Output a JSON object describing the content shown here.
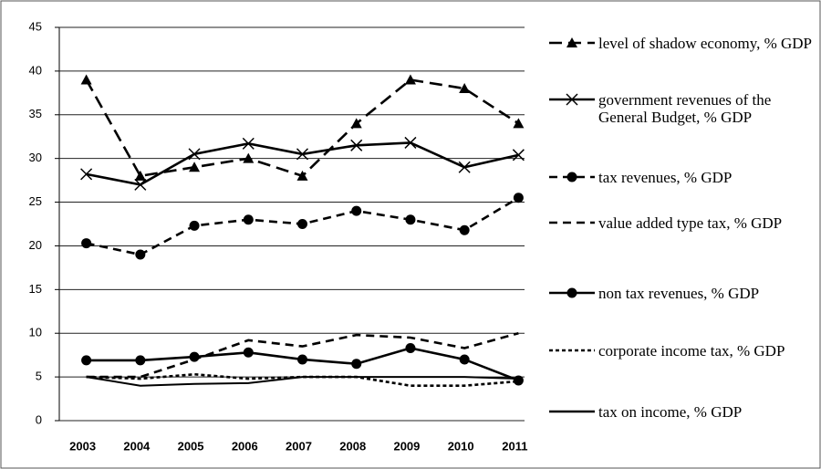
{
  "chart_data": {
    "type": "line",
    "categories": [
      "2003",
      "2004",
      "2005",
      "2006",
      "2007",
      "2008",
      "2009",
      "2010",
      "2011"
    ],
    "ylim": [
      0,
      45
    ],
    "yticks": [
      0,
      5,
      10,
      15,
      20,
      25,
      30,
      35,
      40,
      45
    ],
    "grid": true,
    "legend": "right",
    "series": [
      {
        "name": "level of shadow economy, % GDP",
        "color": "#000000",
        "marker": "triangle",
        "dash": "long",
        "values": [
          39,
          28,
          29,
          30,
          28,
          34,
          39,
          38,
          34
        ]
      },
      {
        "name": "government revenues of the General Budget, % GDP",
        "color": "#000000",
        "marker": "x",
        "dash": "solid",
        "values": [
          28.2,
          27,
          30.5,
          31.7,
          30.5,
          31.5,
          31.8,
          29,
          30.4
        ]
      },
      {
        "name": "tax revenues, % GDP",
        "color": "#000000",
        "marker": "circle",
        "dash": "medium",
        "values": [
          20.3,
          19,
          22.3,
          23,
          22.5,
          24,
          23,
          21.8,
          25.5
        ]
      },
      {
        "name": "value added type tax, % GDP",
        "color": "#000000",
        "marker": "none",
        "dash": "medium",
        "values": [
          5,
          5,
          7,
          9.2,
          8.5,
          9.8,
          9.5,
          8.3,
          10
        ]
      },
      {
        "name": "non tax revenues, % GDP",
        "color": "#000000",
        "marker": "circle",
        "dash": "solid",
        "values": [
          6.9,
          6.9,
          7.3,
          7.8,
          7,
          6.5,
          8.3,
          7,
          4.6
        ]
      },
      {
        "name": "corporate income tax, % GDP",
        "color": "#000000",
        "marker": "none",
        "dash": "short",
        "values": [
          5,
          4.8,
          5.3,
          4.8,
          5,
          5,
          4,
          4,
          4.5
        ]
      },
      {
        "name": "tax on income, % GDP",
        "color": "#000000",
        "marker": "none",
        "dash": "solid",
        "values": [
          5,
          4,
          4.2,
          4.3,
          5,
          5,
          5,
          5,
          4.8
        ]
      }
    ]
  }
}
